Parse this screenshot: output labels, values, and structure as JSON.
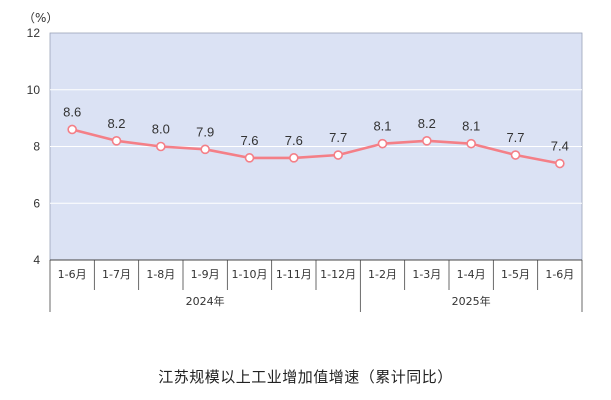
{
  "chart_data": {
    "type": "line",
    "title": "江苏规模以上工业增加值增速（累计同比）",
    "unit_label": "（%）",
    "categories": [
      "1-6月",
      "1-7月",
      "1-8月",
      "1-9月",
      "1-10月",
      "1-11月",
      "1-12月",
      "1-2月",
      "1-3月",
      "1-4月",
      "1-5月",
      "1-6月"
    ],
    "groups": [
      {
        "label": "2024年",
        "start": 0,
        "end": 6
      },
      {
        "label": "2025年",
        "start": 7,
        "end": 11
      }
    ],
    "series": [
      {
        "values": [
          8.6,
          8.2,
          8.0,
          7.9,
          7.6,
          7.6,
          7.7,
          8.1,
          8.2,
          8.1,
          7.7,
          7.4
        ]
      }
    ],
    "data_labels": [
      "8.6",
      "8.2",
      "8.0",
      "7.9",
      "7.6",
      "7.6",
      "7.7",
      "8.1",
      "8.2",
      "8.1",
      "7.7",
      "7.4"
    ],
    "yticks": [
      "4",
      "6",
      "8",
      "10",
      "12"
    ],
    "ylim": [
      4,
      12
    ],
    "grid": true,
    "colors": {
      "line": "#f47f87",
      "plot_bg": "#dbe2f4",
      "grid": "#ffffff",
      "marker_fill": "#ffffff"
    }
  }
}
